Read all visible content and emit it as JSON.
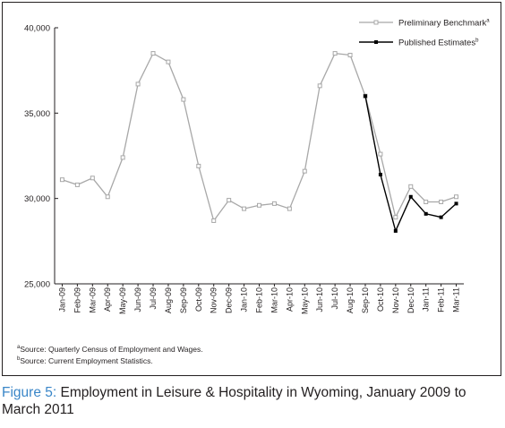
{
  "figure": {
    "label": "Figure 5:",
    "title": "Employment in Leisure & Hospitality in Wyoming, January 2009 to March 2011"
  },
  "footnotes": [
    {
      "marker": "a",
      "text": "Source: Quarterly Census of Employment and Wages."
    },
    {
      "marker": "b",
      "text": "Source: Current Employment Statistics."
    }
  ],
  "chart_data": {
    "type": "line",
    "title": "",
    "xlabel": "",
    "ylabel": "",
    "ylim": [
      25000,
      40000
    ],
    "yticks": [
      "25,000",
      "30,000",
      "35,000",
      "40,000"
    ],
    "grid": false,
    "legend_position": "top-right",
    "categories": [
      "Jan-09",
      "Feb-09",
      "Mar-09",
      "Apr-09",
      "May-09",
      "Jun-09",
      "Jul-09",
      "Aug-09",
      "Sep-09",
      "Oct-09",
      "Nov-09",
      "Dec-09",
      "Jan-10",
      "Feb-10",
      "Mar-10",
      "Apr-10",
      "May-10",
      "Jun-10",
      "Jul-10",
      "Aug-10",
      "Sep-10",
      "Oct-10",
      "Nov-10",
      "Dec-10",
      "Jan-11",
      "Feb-11",
      "Mar-11"
    ],
    "series": [
      {
        "name": "Preliminary Benchmark",
        "superscript": "a",
        "color": "#a8a8a8",
        "marker": "open-square",
        "values": [
          31100,
          30800,
          31200,
          30100,
          32400,
          36700,
          38500,
          38000,
          35800,
          31900,
          28700,
          29900,
          29400,
          29600,
          29700,
          29400,
          31600,
          36600,
          38500,
          38400,
          36000,
          32600,
          28900,
          30700,
          29800,
          29800,
          30100
        ]
      },
      {
        "name": "Published Estimates",
        "superscript": "b",
        "color": "#000000",
        "marker": "filled-square",
        "values": [
          null,
          null,
          null,
          null,
          null,
          null,
          null,
          null,
          null,
          null,
          null,
          null,
          null,
          null,
          null,
          null,
          null,
          null,
          null,
          null,
          36000,
          31400,
          28100,
          30100,
          29100,
          28900,
          29700
        ]
      }
    ]
  }
}
